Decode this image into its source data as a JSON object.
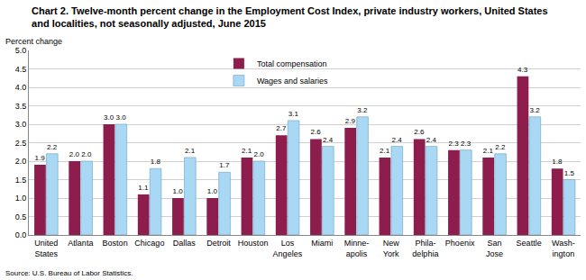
{
  "chart_data": {
    "type": "bar",
    "title": "Chart 2. Twelve-month percent change in the Employment Cost Index, private industry workers, United States\nand localities, not seasonally adjusted, June 2015",
    "y_label": "Percent change",
    "source": "Source: U.S. Bureau of Labor Statistics.",
    "categories": [
      "United\nStates",
      "Atlanta",
      "Boston",
      "Chicago",
      "Dallas",
      "Detroit",
      "Houston",
      "Los\nAngeles",
      "Miami",
      "Minne-\napolis",
      "New\nYork",
      "Phila-\ndelphia",
      "Phoenix",
      "San\nJose",
      "Seattle",
      "Wash-\nington"
    ],
    "series": [
      {
        "name": "Total compensation",
        "color": "#8c1d4d",
        "values": [
          1.9,
          2.0,
          3.0,
          1.1,
          1.0,
          1.0,
          2.1,
          2.7,
          2.6,
          2.9,
          2.1,
          2.6,
          2.3,
          2.1,
          4.3,
          1.8
        ],
        "value_labels": [
          "1.9",
          "2.0",
          "3.0",
          "1.1",
          "1.0",
          "1.0",
          "2.1",
          "2.7",
          "2.6",
          "2.9",
          "2.1",
          "2.6",
          "2.3",
          "2.1",
          "4.3",
          "1.8"
        ]
      },
      {
        "name": "Wages and salaries",
        "color": "#a8d8f4",
        "values": [
          2.2,
          2.0,
          3.0,
          1.8,
          2.1,
          1.7,
          2.0,
          3.1,
          2.4,
          3.2,
          2.4,
          2.4,
          2.3,
          2.2,
          3.2,
          1.5
        ],
        "value_labels": [
          "2.2",
          "2.0",
          "3.0",
          "1.8",
          "2.1",
          "1.7",
          "2.0",
          "3.1",
          "2.4",
          "3.2",
          "2.4",
          "2.4",
          "2.3",
          "2.2",
          "3.2",
          "1.5"
        ]
      }
    ],
    "ylim": [
      0,
      5
    ],
    "yticks": [
      {
        "value": 0,
        "label": "0.0"
      },
      {
        "value": 0.5,
        "label": "0.5"
      },
      {
        "value": 1,
        "label": "1.0"
      },
      {
        "value": 1.5,
        "label": "1.5"
      },
      {
        "value": 2,
        "label": "2.0"
      },
      {
        "value": 2.5,
        "label": "2.5"
      },
      {
        "value": 3,
        "label": "3.0"
      },
      {
        "value": 3.5,
        "label": "3.5"
      },
      {
        "value": 4,
        "label": "4.0"
      },
      {
        "value": 4.5,
        "label": "4.5"
      },
      {
        "value": 5,
        "label": "5.0"
      }
    ],
    "grid": true,
    "legend": "top",
    "data_labels": true
  }
}
